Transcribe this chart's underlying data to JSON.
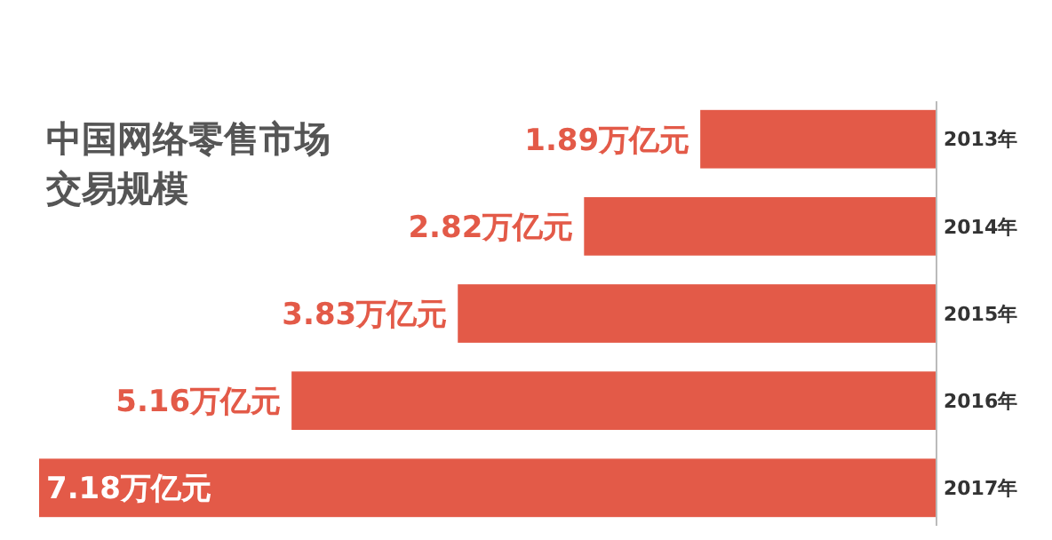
{
  "chart_data": {
    "type": "bar",
    "orientation": "horizontal",
    "title": "中国网络零售市场交易规模",
    "categories": [
      "2013年",
      "2014年",
      "2015年",
      "2016年",
      "2017年"
    ],
    "values": [
      1.89,
      2.82,
      3.83,
      5.16,
      7.18
    ],
    "value_labels": [
      "1.89万亿元",
      "2.82万亿元",
      "3.83万亿元",
      "5.16万亿元",
      "7.18万亿元"
    ],
    "color": "#e35a48"
  }
}
